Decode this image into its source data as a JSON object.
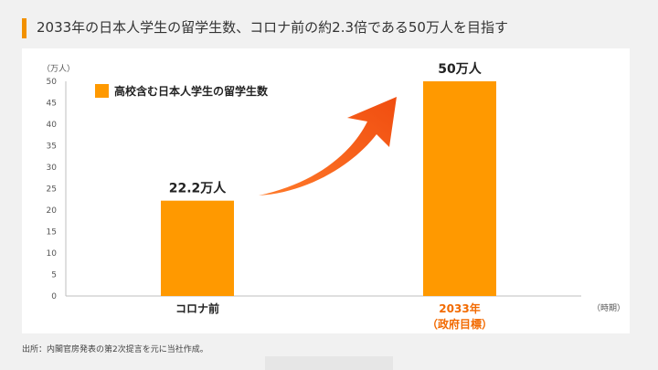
{
  "title": "2033年の日本人学生の留学生数、コロナ前の約2.3倍である50万人を目指す",
  "source": "出所：内閣官房発表の第2次提言を元に当社作成。",
  "colors": {
    "accent": "#f29100",
    "bar": "#ff9900",
    "arrow": "#f25c19",
    "highlight_text": "#f26a00"
  },
  "chart_data": {
    "type": "bar",
    "categories": [
      "コロナ前",
      "2033年"
    ],
    "category_sublabels": [
      "",
      "（政府目標）"
    ],
    "series": [
      {
        "name": "高校含む日本人学生の留学生数",
        "values": [
          22.2,
          50
        ]
      }
    ],
    "data_labels": [
      "22.2万人",
      "50万人"
    ],
    "yunit": "（万人）",
    "xunit": "（時期）",
    "ylim": [
      0,
      50
    ],
    "yticks": [
      0,
      5,
      10,
      15,
      20,
      25,
      30,
      35,
      40,
      45,
      50
    ],
    "grid": false,
    "legend_position": "top-left",
    "annotation": "upward arrow from 22.2万人 to 50万人"
  }
}
